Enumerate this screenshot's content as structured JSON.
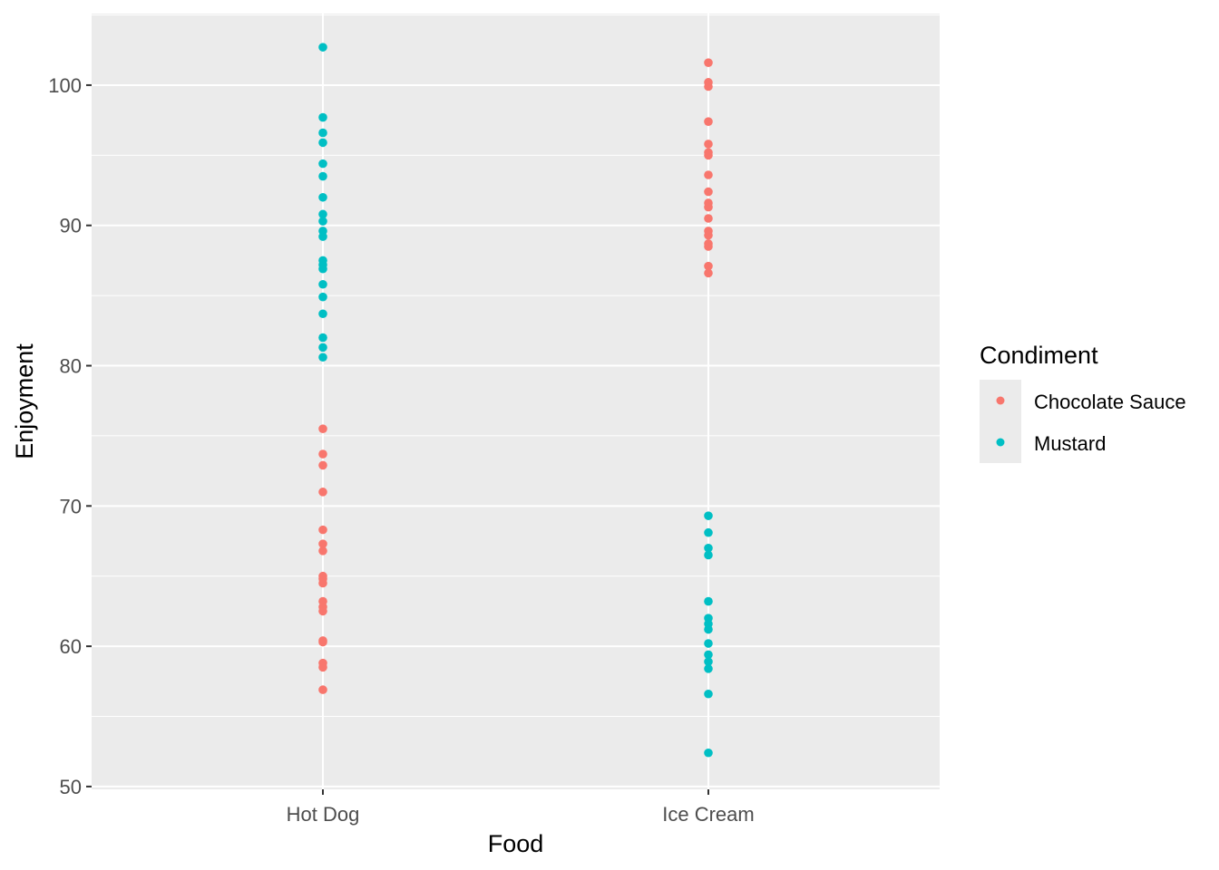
{
  "chart_data": {
    "type": "scatter",
    "title": "",
    "xlabel": "Food",
    "ylabel": "Enjoyment",
    "categories": [
      "Hot Dog",
      "Ice Cream"
    ],
    "ylim": [
      49.8,
      105.1
    ],
    "yticks": [
      50,
      60,
      70,
      80,
      90,
      100
    ],
    "ytick_labels": [
      "50",
      "60",
      "70",
      "80",
      "90",
      "100"
    ],
    "grid": true,
    "legend": {
      "title": "Condiment",
      "placement": "right",
      "entries": [
        "Chocolate Sauce",
        "Mustard"
      ]
    },
    "series": [
      {
        "name": "Chocolate Sauce",
        "color": "#F8766D",
        "points": [
          {
            "x": "Hot Dog",
            "y": 75.5
          },
          {
            "x": "Hot Dog",
            "y": 73.7
          },
          {
            "x": "Hot Dog",
            "y": 72.9
          },
          {
            "x": "Hot Dog",
            "y": 71.0
          },
          {
            "x": "Hot Dog",
            "y": 68.3
          },
          {
            "x": "Hot Dog",
            "y": 67.3
          },
          {
            "x": "Hot Dog",
            "y": 66.8
          },
          {
            "x": "Hot Dog",
            "y": 65.0
          },
          {
            "x": "Hot Dog",
            "y": 64.8
          },
          {
            "x": "Hot Dog",
            "y": 64.5
          },
          {
            "x": "Hot Dog",
            "y": 63.2
          },
          {
            "x": "Hot Dog",
            "y": 62.8
          },
          {
            "x": "Hot Dog",
            "y": 62.5
          },
          {
            "x": "Hot Dog",
            "y": 60.4
          },
          {
            "x": "Hot Dog",
            "y": 60.3
          },
          {
            "x": "Hot Dog",
            "y": 58.8
          },
          {
            "x": "Hot Dog",
            "y": 58.5
          },
          {
            "x": "Hot Dog",
            "y": 56.9
          },
          {
            "x": "Ice Cream",
            "y": 101.6
          },
          {
            "x": "Ice Cream",
            "y": 100.2
          },
          {
            "x": "Ice Cream",
            "y": 99.9
          },
          {
            "x": "Ice Cream",
            "y": 97.4
          },
          {
            "x": "Ice Cream",
            "y": 95.8
          },
          {
            "x": "Ice Cream",
            "y": 95.2
          },
          {
            "x": "Ice Cream",
            "y": 95.0
          },
          {
            "x": "Ice Cream",
            "y": 93.6
          },
          {
            "x": "Ice Cream",
            "y": 92.4
          },
          {
            "x": "Ice Cream",
            "y": 91.6
          },
          {
            "x": "Ice Cream",
            "y": 91.3
          },
          {
            "x": "Ice Cream",
            "y": 90.5
          },
          {
            "x": "Ice Cream",
            "y": 89.6
          },
          {
            "x": "Ice Cream",
            "y": 89.3
          },
          {
            "x": "Ice Cream",
            "y": 88.7
          },
          {
            "x": "Ice Cream",
            "y": 88.5
          },
          {
            "x": "Ice Cream",
            "y": 87.1
          },
          {
            "x": "Ice Cream",
            "y": 86.6
          }
        ]
      },
      {
        "name": "Mustard",
        "color": "#00BFC4",
        "points": [
          {
            "x": "Hot Dog",
            "y": 102.7
          },
          {
            "x": "Hot Dog",
            "y": 97.7
          },
          {
            "x": "Hot Dog",
            "y": 96.6
          },
          {
            "x": "Hot Dog",
            "y": 95.9
          },
          {
            "x": "Hot Dog",
            "y": 94.4
          },
          {
            "x": "Hot Dog",
            "y": 93.5
          },
          {
            "x": "Hot Dog",
            "y": 92.0
          },
          {
            "x": "Hot Dog",
            "y": 90.8
          },
          {
            "x": "Hot Dog",
            "y": 90.3
          },
          {
            "x": "Hot Dog",
            "y": 89.6
          },
          {
            "x": "Hot Dog",
            "y": 89.2
          },
          {
            "x": "Hot Dog",
            "y": 87.5
          },
          {
            "x": "Hot Dog",
            "y": 87.2
          },
          {
            "x": "Hot Dog",
            "y": 86.9
          },
          {
            "x": "Hot Dog",
            "y": 85.8
          },
          {
            "x": "Hot Dog",
            "y": 84.9
          },
          {
            "x": "Hot Dog",
            "y": 83.7
          },
          {
            "x": "Hot Dog",
            "y": 82.0
          },
          {
            "x": "Hot Dog",
            "y": 81.3
          },
          {
            "x": "Hot Dog",
            "y": 80.6
          },
          {
            "x": "Ice Cream",
            "y": 69.3
          },
          {
            "x": "Ice Cream",
            "y": 68.1
          },
          {
            "x": "Ice Cream",
            "y": 67.0
          },
          {
            "x": "Ice Cream",
            "y": 66.5
          },
          {
            "x": "Ice Cream",
            "y": 63.2
          },
          {
            "x": "Ice Cream",
            "y": 62.0
          },
          {
            "x": "Ice Cream",
            "y": 61.6
          },
          {
            "x": "Ice Cream",
            "y": 61.2
          },
          {
            "x": "Ice Cream",
            "y": 60.2
          },
          {
            "x": "Ice Cream",
            "y": 59.4
          },
          {
            "x": "Ice Cream",
            "y": 58.9
          },
          {
            "x": "Ice Cream",
            "y": 58.4
          },
          {
            "x": "Ice Cream",
            "y": 56.6
          },
          {
            "x": "Ice Cream",
            "y": 52.4
          }
        ]
      }
    ]
  }
}
